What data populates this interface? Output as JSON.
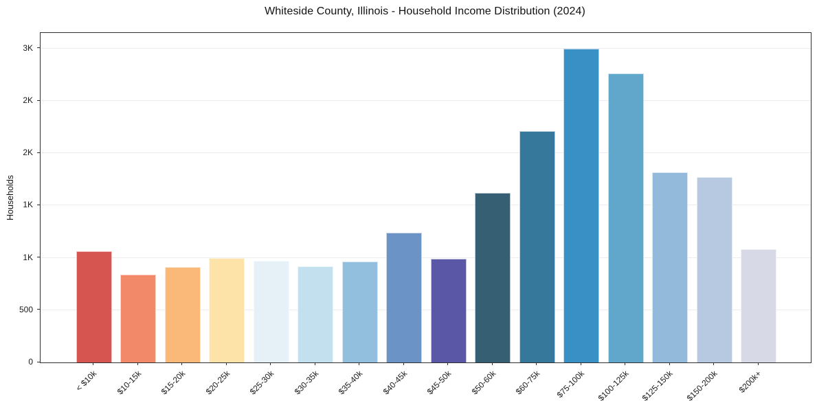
{
  "chart_data": {
    "type": "bar",
    "title": "Whiteside County, Illinois - Household Income Distribution (2024)",
    "xlabel": "",
    "ylabel": "Households",
    "ylim": [
      0,
      3150
    ],
    "grid": "horizontal",
    "legend": "none",
    "categories": [
      "< $10k",
      "$10-15k",
      "$15-20k",
      "$20-25k",
      "$25-30k",
      "$30-35k",
      "$35-40k",
      "$40-45k",
      "$45-50k",
      "$50-60k",
      "$60-75k",
      "$75-100k",
      "$100-125k",
      "$125-150k",
      "$150-200k",
      "$200k+"
    ],
    "values": [
      1060,
      840,
      910,
      1000,
      970,
      920,
      968,
      1240,
      990,
      1620,
      2210,
      3000,
      2765,
      1820,
      1770,
      1080
    ],
    "bar_colors": [
      "#d65550",
      "#f28a6a",
      "#fbb979",
      "#fde3a7",
      "#e6f1f7",
      "#c3e0ee",
      "#92bfdd",
      "#6b93c5",
      "#5957a6",
      "#375f73",
      "#35789c",
      "#3990c4",
      "#61a6cb",
      "#94badb",
      "#b7c9e0",
      "#d7d9e7"
    ],
    "yticks": [
      {
        "value": 0,
        "label": "0"
      },
      {
        "value": 500,
        "label": "500"
      },
      {
        "value": 1000,
        "label": "1K"
      },
      {
        "value": 1500,
        "label": "1K"
      },
      {
        "value": 2000,
        "label": "2K"
      },
      {
        "value": 2500,
        "label": "2K"
      },
      {
        "value": 3000,
        "label": "3K"
      }
    ],
    "colors": {
      "background": "#ffffff",
      "grid": "#ebebf0",
      "spine": "#2e2e2e",
      "text": "#1a1a1a"
    }
  }
}
